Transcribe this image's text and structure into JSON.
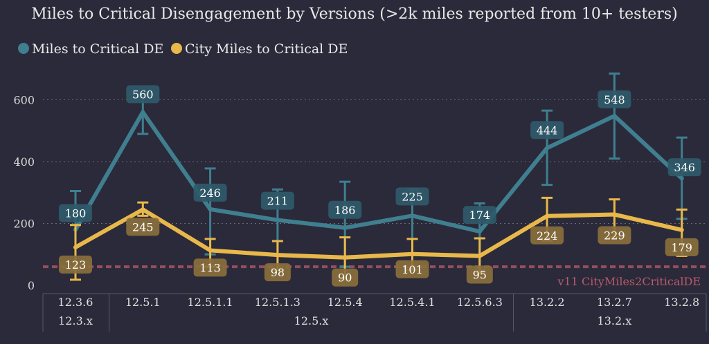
{
  "chart_data": {
    "type": "line",
    "title": "Miles to Critical Disengagement by Versions (>2k miles reported from 10+ testers)",
    "xlabel": "",
    "ylabel": "",
    "ylim": [
      0,
      700
    ],
    "yticks": [
      0,
      200,
      400,
      600
    ],
    "grid": true,
    "legend_position": "top-left",
    "categories": [
      "12.3.6",
      "12.5.1",
      "12.5.1.1",
      "12.5.1.3",
      "12.5.4",
      "12.5.4.1",
      "12.5.6.3",
      "13.2.2",
      "13.2.7",
      "13.2.8"
    ],
    "groups": [
      {
        "label": "12.3.x",
        "count": 1
      },
      {
        "label": "12.5.x",
        "count": 6
      },
      {
        "label": "13.2.x",
        "count": 3
      }
    ],
    "series": [
      {
        "name": "Miles to Critical DE",
        "color": "#3f7f8f",
        "label_bg": "#2f5a6a",
        "values": [
          180,
          560,
          246,
          211,
          186,
          225,
          174,
          444,
          548,
          346
        ],
        "err_low": [
          50,
          490,
          100,
          100,
          60,
          100,
          50,
          325,
          410,
          215
        ],
        "err_high": [
          305,
          620,
          378,
          310,
          335,
          310,
          265,
          565,
          685,
          478
        ]
      },
      {
        "name": "City Miles to Critical DE",
        "color": "#e8b84a",
        "label_bg": "#8a6f3c",
        "values": [
          123,
          245,
          113,
          98,
          90,
          101,
          95,
          224,
          229,
          179
        ],
        "err_low": [
          18,
          225,
          60,
          50,
          20,
          50,
          40,
          145,
          155,
          95
        ],
        "err_high": [
          195,
          268,
          150,
          143,
          155,
          150,
          152,
          283,
          278,
          245
        ]
      }
    ],
    "reference_line": {
      "value": 60,
      "label": "v11 CityMiles2CriticalDE",
      "color": "#b85a6a"
    }
  }
}
